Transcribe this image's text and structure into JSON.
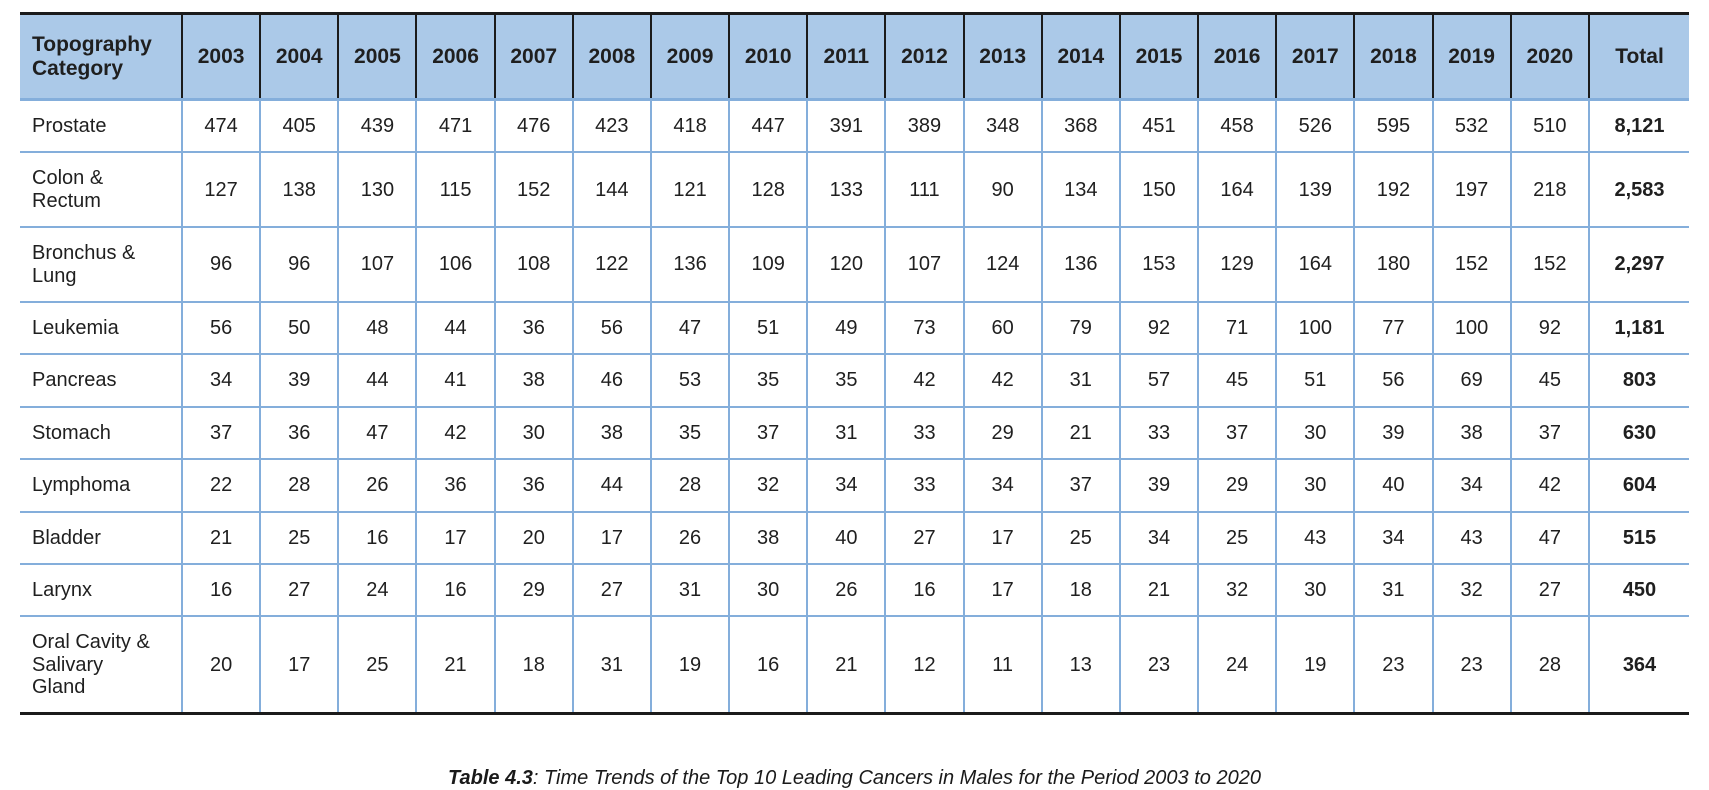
{
  "table": {
    "header": {
      "category_label": "Topography Category",
      "years": [
        "2003",
        "2004",
        "2005",
        "2006",
        "2007",
        "2008",
        "2009",
        "2010",
        "2011",
        "2012",
        "2013",
        "2014",
        "2015",
        "2016",
        "2017",
        "2018",
        "2019",
        "2020"
      ],
      "total_label": "Total"
    },
    "rows": [
      {
        "category": "Prostate",
        "values": [
          474,
          405,
          439,
          471,
          476,
          423,
          418,
          447,
          391,
          389,
          348,
          368,
          451,
          458,
          526,
          595,
          532,
          510
        ],
        "total": "8,121"
      },
      {
        "category": "Colon & Rectum",
        "values": [
          127,
          138,
          130,
          115,
          152,
          144,
          121,
          128,
          133,
          111,
          90,
          134,
          150,
          164,
          139,
          192,
          197,
          218
        ],
        "total": "2,583"
      },
      {
        "category": "Bronchus & Lung",
        "values": [
          96,
          96,
          107,
          106,
          108,
          122,
          136,
          109,
          120,
          107,
          124,
          136,
          153,
          129,
          164,
          180,
          152,
          152
        ],
        "total": "2,297"
      },
      {
        "category": "Leukemia",
        "values": [
          56,
          50,
          48,
          44,
          36,
          56,
          47,
          51,
          49,
          73,
          60,
          79,
          92,
          71,
          100,
          77,
          100,
          92
        ],
        "total": "1,181"
      },
      {
        "category": "Pancreas",
        "values": [
          34,
          39,
          44,
          41,
          38,
          46,
          53,
          35,
          35,
          42,
          42,
          31,
          57,
          45,
          51,
          56,
          69,
          45
        ],
        "total": "803"
      },
      {
        "category": "Stomach",
        "values": [
          37,
          36,
          47,
          42,
          30,
          38,
          35,
          37,
          31,
          33,
          29,
          21,
          33,
          37,
          30,
          39,
          38,
          37
        ],
        "total": "630"
      },
      {
        "category": "Lymphoma",
        "values": [
          22,
          28,
          26,
          36,
          36,
          44,
          28,
          32,
          34,
          33,
          34,
          37,
          39,
          29,
          30,
          40,
          34,
          42
        ],
        "total": "604"
      },
      {
        "category": "Bladder",
        "values": [
          21,
          25,
          16,
          17,
          20,
          17,
          26,
          38,
          40,
          27,
          17,
          25,
          34,
          25,
          43,
          34,
          43,
          47
        ],
        "total": "515"
      },
      {
        "category": "Larynx",
        "values": [
          16,
          27,
          24,
          16,
          29,
          27,
          31,
          30,
          26,
          16,
          17,
          18,
          21,
          32,
          30,
          31,
          32,
          27
        ],
        "total": "450"
      },
      {
        "category": "Oral Cavity & Salivary Gland",
        "values": [
          20,
          17,
          25,
          21,
          18,
          31,
          19,
          16,
          21,
          12,
          11,
          13,
          23,
          24,
          19,
          23,
          23,
          28
        ],
        "total": "364"
      }
    ]
  },
  "caption": {
    "label": "Table 4.3",
    "rest": ": Time Trends of the Top 10 Leading Cancers in Males for the Period 2003 to 2020"
  },
  "colors": {
    "header_bg": "#abc9e8",
    "grid_blue": "#84aedb",
    "frame_black": "#1b1b1b"
  }
}
